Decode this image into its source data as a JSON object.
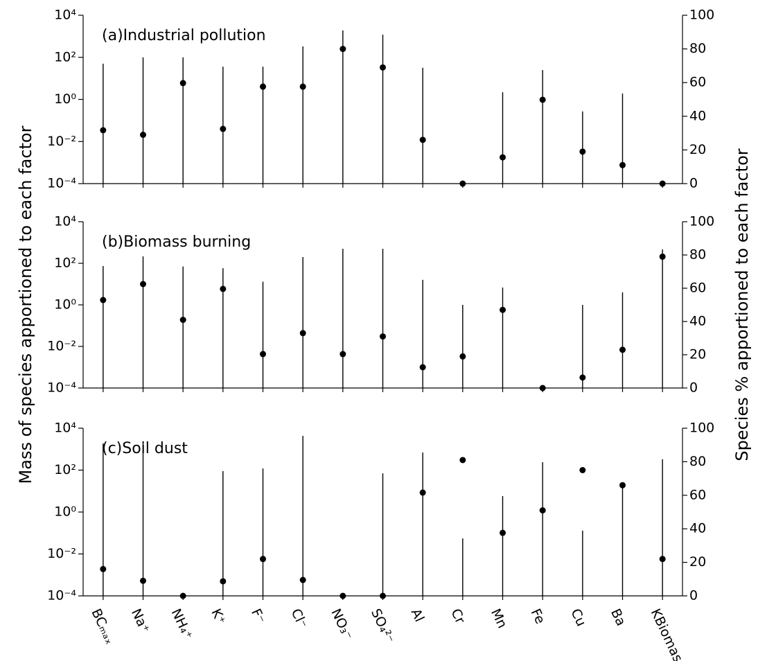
{
  "chart_data": {
    "type": "bar",
    "ylabel": "Mass of species apportioned to each factor",
    "y2label": "Species % apportioned to each factor",
    "categories": [
      "BCₘₐₓ",
      "Na⁺",
      "NH₄⁺",
      "K⁺",
      "F⁻",
      "Cl⁻",
      "NO₃⁻",
      "SO₄²⁻",
      "Al",
      "Cr",
      "Mn",
      "Fe",
      "Cu",
      "Ba",
      "KBiomass"
    ],
    "log_y": true,
    "ylim": [
      0.0001,
      10000
    ],
    "yticks": [
      {
        "value": 0.0001,
        "label": "10⁻⁴"
      },
      {
        "value": 0.01,
        "label": "10⁻²"
      },
      {
        "value": 1,
        "label": "10⁰"
      },
      {
        "value": 100,
        "label": "10²"
      },
      {
        "value": 10000,
        "label": "10⁴"
      }
    ],
    "y2lim": [
      0,
      100
    ],
    "y2ticks": [
      0,
      20,
      40,
      60,
      80,
      100
    ],
    "panels": [
      {
        "title": "(a)Industrial pollution",
        "series": [
          {
            "type": "bar",
            "color": "#000000",
            "values": [
              50,
              100,
              100,
              36,
              36,
              330,
              1900,
              1200,
              32,
              null,
              2.2,
              25,
              0.27,
              1.9,
              null
            ]
          },
          {
            "type": "scatter",
            "axis": "y2",
            "color": "#000000",
            "values": [
              31.7,
              29,
              59.7,
              32.5,
              57.6,
              57.6,
              80,
              69,
              26,
              0,
              15.6,
              49.8,
              19,
              11,
              0
            ]
          }
        ]
      },
      {
        "title": "(b)Biomass burning",
        "series": [
          {
            "type": "bar",
            "color": "#000000",
            "values": [
              74,
              215,
              70,
              58,
              13,
              200,
              500,
              500,
              16,
              1,
              6.8,
              null,
              1,
              4,
              470
            ]
          },
          {
            "type": "scatter",
            "axis": "y2",
            "color": "#000000",
            "values": [
              52.9,
              62.5,
              41,
              59.6,
              20.4,
              33,
              20.4,
              31,
              12.5,
              19,
              47,
              0,
              6.3,
              23,
              79
            ]
          }
        ]
      },
      {
        "title": "(c)Soil dust",
        "series": [
          {
            "type": "bar",
            "color": "#000000",
            "values": [
              1900,
              2300,
              null,
              90,
              120,
              4300,
              null,
              70,
              690,
              0.055,
              5.8,
              240,
              0.13,
              19,
              330
            ]
          },
          {
            "type": "scatter",
            "axis": "y2",
            "color": "#000000",
            "values": [
              16,
              9,
              0,
              8.7,
              22,
              9.5,
              0,
              0,
              61.6,
              81,
              37.6,
              51,
              75,
              66,
              22
            ]
          }
        ]
      }
    ]
  }
}
